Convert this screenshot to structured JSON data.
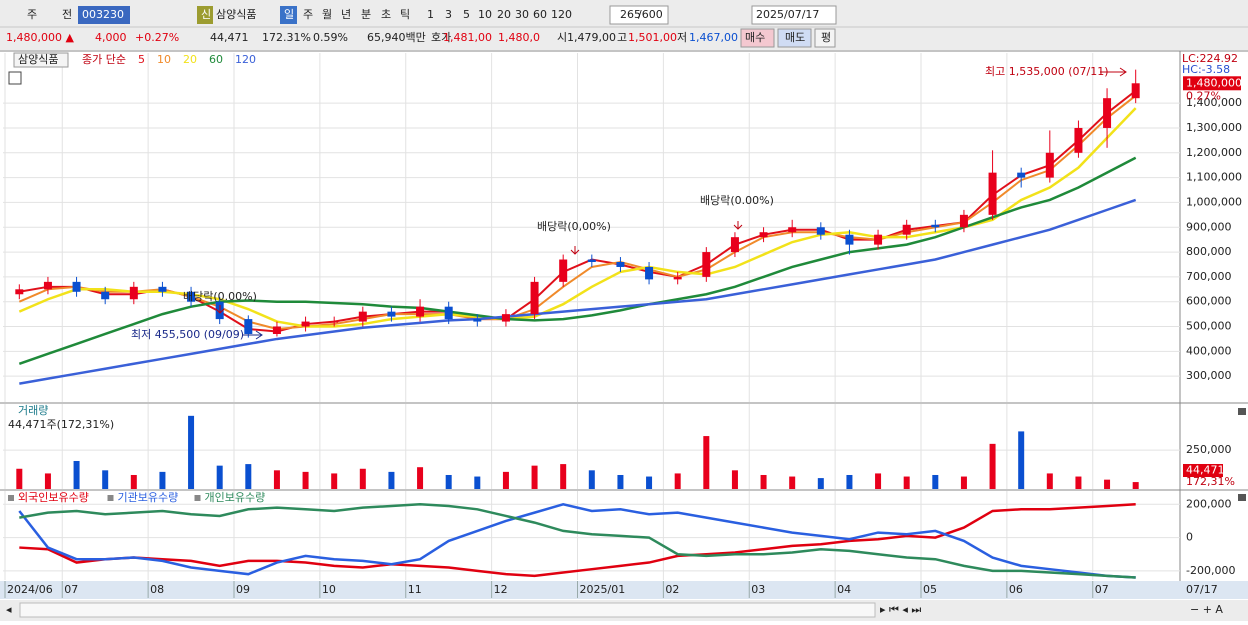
{
  "toolbar": {
    "row1": [
      "주",
      "전",
      "003230",
      "신",
      "삼양식품",
      "일",
      "주",
      "월",
      "년",
      "분",
      "초",
      "틱",
      "1",
      "3",
      "5",
      "10",
      "20",
      "30",
      "60",
      "120",
      "265",
      "/600",
      "2025/07/17"
    ],
    "row2": [
      "1,480,000 ▲",
      "4,000",
      "+0.27%",
      "44,471",
      "172.31%",
      "0.59%",
      "65,940백만",
      "호가",
      "1,481,00",
      "1,480,0",
      "시",
      "1,479,00",
      "고",
      "1,501,00",
      "저",
      "1,467,00",
      "매수",
      "매도",
      "평"
    ]
  },
  "chart_data": [
    {
      "type": "candlestick",
      "title": "삼양식품",
      "ma_label": "종가 단순",
      "up_color": "#e8001c",
      "down_color": "#0a4fd0",
      "categories": [
        "2024/06",
        null,
        "07",
        null,
        null,
        "08",
        null,
        null,
        "09",
        null,
        null,
        "10",
        null,
        null,
        "11",
        null,
        null,
        "12",
        null,
        null,
        "2025/01",
        null,
        null,
        "02",
        null,
        null,
        "03",
        null,
        null,
        "04",
        null,
        null,
        "05",
        null,
        null,
        "06",
        null,
        null,
        "07",
        null
      ],
      "last_date": "07/17",
      "open": [
        630000,
        650000,
        680000,
        640000,
        610000,
        660000,
        640000,
        600000,
        530000,
        470000,
        500000,
        520000,
        520000,
        560000,
        540000,
        580000,
        530000,
        520000,
        550000,
        680000,
        770000,
        760000,
        740000,
        690000,
        700000,
        800000,
        860000,
        880000,
        900000,
        870000,
        830000,
        870000,
        910000,
        900000,
        950000,
        1120000,
        1100000,
        1200000,
        1300000,
        1420000
      ],
      "high": [
        670000,
        700000,
        700000,
        660000,
        680000,
        680000,
        660000,
        620000,
        545000,
        520000,
        540000,
        540000,
        580000,
        580000,
        610000,
        600000,
        550000,
        570000,
        700000,
        790000,
        790000,
        780000,
        760000,
        720000,
        820000,
        880000,
        900000,
        930000,
        920000,
        890000,
        890000,
        930000,
        930000,
        970000,
        1210000,
        1140000,
        1290000,
        1330000,
        1460000,
        1535000
      ],
      "low": [
        610000,
        630000,
        620000,
        590000,
        590000,
        620000,
        580000,
        510000,
        455500,
        460000,
        480000,
        500000,
        500000,
        520000,
        520000,
        510000,
        500000,
        500000,
        530000,
        660000,
        740000,
        720000,
        670000,
        670000,
        680000,
        780000,
        840000,
        860000,
        850000,
        790000,
        810000,
        850000,
        880000,
        880000,
        930000,
        1060000,
        1080000,
        1180000,
        1220000,
        1400000
      ],
      "close": [
        650000,
        680000,
        640000,
        610000,
        660000,
        640000,
        600000,
        530000,
        470000,
        500000,
        520000,
        520000,
        560000,
        540000,
        580000,
        530000,
        520000,
        550000,
        680000,
        770000,
        760000,
        740000,
        690000,
        700000,
        800000,
        860000,
        880000,
        900000,
        870000,
        830000,
        870000,
        910000,
        900000,
        950000,
        1120000,
        1100000,
        1200000,
        1300000,
        1420000,
        1480000
      ],
      "value_labels": [
        null,
        null,
        null,
        null,
        null,
        null,
        null,
        null,
        null,
        null,
        null,
        null,
        null,
        null,
        null,
        null,
        null,
        null,
        null,
        null,
        null,
        null,
        null,
        null,
        null,
        null,
        null,
        null,
        null,
        null,
        null,
        null,
        null,
        null,
        null,
        null,
        null,
        null,
        null,
        "1,480,000"
      ],
      "series": [
        {
          "name": "5",
          "color": "#e0101a",
          "values": [
            640000,
            660000,
            660000,
            630000,
            630000,
            650000,
            620000,
            560000,
            490000,
            480000,
            510000,
            520000,
            540000,
            550000,
            560000,
            560000,
            530000,
            530000,
            610000,
            720000,
            770000,
            750000,
            720000,
            700000,
            750000,
            830000,
            870000,
            890000,
            890000,
            850000,
            850000,
            890000,
            905000,
            920000,
            1030000,
            1110000,
            1150000,
            1250000,
            1360000,
            1450000
          ]
        },
        {
          "name": "10",
          "color": "#f08a2a",
          "values": [
            600000,
            650000,
            660000,
            640000,
            640000,
            650000,
            620000,
            580000,
            520000,
            490000,
            500000,
            510000,
            530000,
            550000,
            550000,
            550000,
            530000,
            530000,
            570000,
            660000,
            740000,
            760000,
            730000,
            700000,
            730000,
            800000,
            860000,
            880000,
            880000,
            860000,
            850000,
            880000,
            900000,
            920000,
            1000000,
            1090000,
            1130000,
            1230000,
            1340000,
            1430000
          ]
        },
        {
          "name": "20",
          "color": "#f2e21a",
          "values": [
            560000,
            610000,
            650000,
            650000,
            640000,
            640000,
            630000,
            610000,
            570000,
            520000,
            500000,
            500000,
            510000,
            530000,
            540000,
            550000,
            540000,
            530000,
            540000,
            590000,
            660000,
            720000,
            740000,
            720000,
            710000,
            740000,
            790000,
            840000,
            870000,
            880000,
            860000,
            860000,
            880000,
            900000,
            930000,
            1010000,
            1060000,
            1140000,
            1260000,
            1380000
          ]
        },
        {
          "name": "60",
          "color": "#1f8a3a",
          "values": [
            350000,
            390000,
            430000,
            470000,
            510000,
            550000,
            580000,
            600000,
            605000,
            600000,
            600000,
            595000,
            590000,
            580000,
            575000,
            560000,
            545000,
            530000,
            525000,
            530000,
            545000,
            565000,
            590000,
            610000,
            630000,
            660000,
            700000,
            740000,
            770000,
            800000,
            815000,
            830000,
            860000,
            900000,
            940000,
            980000,
            1010000,
            1060000,
            1120000,
            1180000
          ]
        },
        {
          "name": "120",
          "color": "#3a60d8",
          "values": [
            270000,
            290000,
            310000,
            330000,
            350000,
            370000,
            390000,
            410000,
            430000,
            450000,
            465000,
            480000,
            495000,
            505000,
            515000,
            525000,
            530000,
            540000,
            550000,
            560000,
            570000,
            580000,
            590000,
            600000,
            610000,
            630000,
            650000,
            670000,
            690000,
            710000,
            730000,
            750000,
            770000,
            800000,
            830000,
            860000,
            890000,
            930000,
            970000,
            1010000
          ]
        }
      ],
      "ylim": [
        196000,
        1602000
      ],
      "yticks": [
        {
          "value": 300000,
          "label": "300,000"
        },
        {
          "value": 400000,
          "label": "400,000"
        },
        {
          "value": 500000,
          "label": "500,000"
        },
        {
          "value": 600000,
          "label": "600,000"
        },
        {
          "value": 700000,
          "label": "700,000"
        },
        {
          "value": 800000,
          "label": "800,000"
        },
        {
          "value": 900000,
          "label": "900,000"
        },
        {
          "value": 1000000,
          "label": "1,000,000"
        },
        {
          "value": 1100000,
          "label": "1,100,000"
        },
        {
          "value": 1200000,
          "label": "1,200,000"
        },
        {
          "value": 1300000,
          "label": "1,300,000"
        },
        {
          "value": 1400000,
          "label": "1,400,000"
        }
      ],
      "annotations": [
        "최고 1,535,000 (07/11)",
        "최저 455,500 (09/09)",
        "배당락(0.00%)",
        "배당락(0,00%)",
        "배당락(0.00%)",
        "LC:224.92",
        "HC:-3.58",
        "0.27%"
      ],
      "grid": true
    },
    {
      "type": "bar",
      "title": "거래량",
      "subtitle": "44,471주(172,31%)",
      "values": [
        130000,
        100000,
        180000,
        120000,
        90000,
        110000,
        470000,
        150000,
        160000,
        120000,
        110000,
        100000,
        130000,
        110000,
        140000,
        90000,
        80000,
        110000,
        150000,
        160000,
        120000,
        90000,
        80000,
        100000,
        340000,
        120000,
        90000,
        80000,
        70000,
        90000,
        100000,
        80000,
        90000,
        80000,
        290000,
        370000,
        100000,
        80000,
        60000,
        44471
      ],
      "value_labels": [
        null,
        null,
        null,
        null,
        null,
        null,
        null,
        null,
        null,
        null,
        null,
        null,
        null,
        null,
        null,
        null,
        null,
        null,
        null,
        null,
        null,
        null,
        null,
        null,
        null,
        null,
        null,
        null,
        null,
        null,
        null,
        null,
        null,
        null,
        null,
        null,
        null,
        null,
        null,
        "44,471"
      ],
      "ylim": [
        0,
        546000
      ],
      "yticks": [
        {
          "value": 250000,
          "label": "250,000"
        }
      ],
      "annotations": [
        "172,31%"
      ]
    },
    {
      "type": "line",
      "series": [
        {
          "name": "외국인보유수량",
          "color": "#e00010",
          "values": [
            -60000,
            -70000,
            -150000,
            -130000,
            -120000,
            -130000,
            -140000,
            -170000,
            -140000,
            -140000,
            -150000,
            -170000,
            -180000,
            -160000,
            -170000,
            -180000,
            -200000,
            -220000,
            -230000,
            -210000,
            -190000,
            -170000,
            -150000,
            -110000,
            -100000,
            -90000,
            -70000,
            -50000,
            -40000,
            -20000,
            -10000,
            10000,
            0,
            60000,
            160000,
            170000,
            170000,
            180000,
            190000,
            200000
          ]
        },
        {
          "name": "기관보유수량",
          "color": "#2a5fe0",
          "values": [
            160000,
            -60000,
            -130000,
            -130000,
            -120000,
            -140000,
            -180000,
            -200000,
            -220000,
            -150000,
            -110000,
            -130000,
            -140000,
            -160000,
            -130000,
            -20000,
            40000,
            100000,
            150000,
            200000,
            160000,
            170000,
            140000,
            150000,
            120000,
            90000,
            60000,
            30000,
            10000,
            -10000,
            30000,
            20000,
            40000,
            -20000,
            -120000,
            -170000,
            -190000,
            -210000,
            -230000,
            -240000
          ]
        },
        {
          "name": "개인보유수량",
          "color": "#2e8a5c",
          "values": [
            120000,
            150000,
            160000,
            140000,
            150000,
            160000,
            140000,
            130000,
            170000,
            180000,
            170000,
            160000,
            180000,
            190000,
            200000,
            190000,
            170000,
            130000,
            90000,
            40000,
            20000,
            10000,
            0,
            -100000,
            -110000,
            -100000,
            -100000,
            -90000,
            -70000,
            -80000,
            -100000,
            -120000,
            -130000,
            -170000,
            -200000,
            -200000,
            -210000,
            -220000,
            -230000,
            -240000
          ]
        }
      ],
      "ylim": [
        -255000,
        280000
      ],
      "yticks": [
        {
          "value": 200000,
          "label": "200,000"
        },
        0,
        {
          "value": -200000,
          "label": "-200,000"
        }
      ]
    }
  ]
}
